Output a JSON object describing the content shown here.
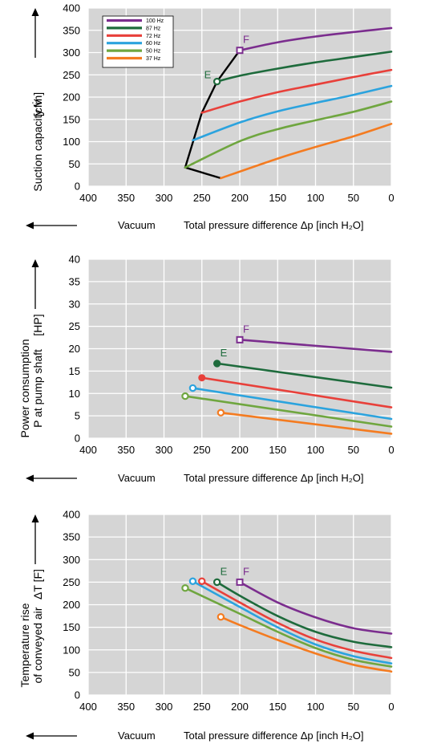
{
  "chart_data": [
    {
      "type": "line",
      "ylabel": "Suction capacity V̇",
      "yunit": "[cfm]",
      "xlabel_left": "Vacuum",
      "xlabel_right": "Total pressure difference Δp [inch H₂O]",
      "xlim": [
        400,
        0
      ],
      "ylim": [
        0,
        400
      ],
      "xticks": [
        400,
        350,
        300,
        250,
        200,
        150,
        100,
        50,
        0
      ],
      "yticks": [
        0,
        50,
        100,
        150,
        200,
        250,
        300,
        350,
        400
      ],
      "grid": true,
      "legend_position": "top-left",
      "series": [
        {
          "name": "100 Hz",
          "color": "#7b2d8e",
          "x": [
            200,
            150,
            100,
            50,
            0
          ],
          "y": [
            305,
            323,
            336,
            346,
            355
          ]
        },
        {
          "name": "87 Hz",
          "color": "#1e6b3c",
          "x": [
            230,
            200,
            150,
            100,
            50,
            0
          ],
          "y": [
            235,
            248,
            264,
            278,
            290,
            302
          ]
        },
        {
          "name": "72 Hz",
          "color": "#e8403a",
          "x": [
            250,
            200,
            150,
            100,
            50,
            0
          ],
          "y": [
            165,
            190,
            211,
            228,
            245,
            261
          ]
        },
        {
          "name": "60 Hz",
          "color": "#2ba3de",
          "x": [
            262,
            200,
            150,
            100,
            50,
            0
          ],
          "y": [
            103,
            143,
            168,
            187,
            205,
            225
          ]
        },
        {
          "name": "50 Hz",
          "color": "#6fa63f",
          "x": [
            272,
            200,
            150,
            100,
            50,
            0
          ],
          "y": [
            42,
            101,
            128,
            148,
            167,
            190
          ]
        },
        {
          "name": "37 Hz",
          "color": "#f47b20",
          "x": [
            225,
            150,
            100,
            50,
            0
          ],
          "y": [
            18,
            62,
            88,
            112,
            140
          ]
        }
      ],
      "boundary": {
        "color": "#000000",
        "x": [
          200,
          230,
          250,
          272,
          225
        ],
        "y": [
          305,
          235,
          165,
          42,
          18
        ]
      },
      "points": [
        {
          "label": "F",
          "x": 200,
          "y": 305,
          "color": "#7b2d8e",
          "marker": "square"
        },
        {
          "label": "E",
          "x": 230,
          "y": 235,
          "color": "#1e6b3c",
          "marker": "circle"
        }
      ]
    },
    {
      "type": "line",
      "ylabel_line1": "Power consumption",
      "ylabel_line2": "P at pump shaft",
      "yunit": "[HP]",
      "xlabel_left": "Vacuum",
      "xlabel_right": "Total pressure difference Δp [inch H₂O]",
      "xlim": [
        400,
        0
      ],
      "ylim": [
        0,
        40
      ],
      "xticks": [
        400,
        350,
        300,
        250,
        200,
        150,
        100,
        50,
        0
      ],
      "yticks": [
        0,
        5,
        10,
        15,
        20,
        25,
        30,
        35,
        40
      ],
      "grid": true,
      "series": [
        {
          "name": "100 Hz",
          "color": "#7b2d8e",
          "x": [
            200,
            0
          ],
          "y": [
            22,
            19.3
          ]
        },
        {
          "name": "87 Hz",
          "color": "#1e6b3c",
          "x": [
            230,
            0
          ],
          "y": [
            16.7,
            11.3
          ]
        },
        {
          "name": "72 Hz",
          "color": "#e8403a",
          "x": [
            250,
            0
          ],
          "y": [
            13.5,
            6.9
          ]
        },
        {
          "name": "60 Hz",
          "color": "#2ba3de",
          "x": [
            262,
            0
          ],
          "y": [
            11.2,
            4.3
          ]
        },
        {
          "name": "50 Hz",
          "color": "#6fa63f",
          "x": [
            272,
            0
          ],
          "y": [
            9.4,
            2.6
          ]
        },
        {
          "name": "37 Hz",
          "color": "#f47b20",
          "x": [
            225,
            0
          ],
          "y": [
            5.7,
            1.0
          ]
        }
      ],
      "points": [
        {
          "label": "F",
          "x": 200,
          "y": 22,
          "color": "#7b2d8e",
          "marker": "square"
        },
        {
          "label": "E",
          "x": 230,
          "y": 16.7,
          "color": "#1e6b3c",
          "marker": "circle"
        }
      ]
    },
    {
      "type": "line",
      "ylabel_line1": "Temperature rise",
      "ylabel_line2": "of conveyed air",
      "yunit": "ΔT [F]",
      "xlabel_left": "Vacuum",
      "xlabel_right": "Total pressure difference Δp [inch H₂O]",
      "xlim": [
        400,
        0
      ],
      "ylim": [
        0,
        400
      ],
      "xticks": [
        400,
        350,
        300,
        250,
        200,
        150,
        100,
        50,
        0
      ],
      "yticks": [
        0,
        50,
        100,
        150,
        200,
        250,
        300,
        350,
        400
      ],
      "grid": true,
      "series": [
        {
          "name": "100 Hz",
          "color": "#7b2d8e",
          "x": [
            200,
            150,
            100,
            50,
            0
          ],
          "y": [
            250,
            205,
            172,
            148,
            136
          ]
        },
        {
          "name": "87 Hz",
          "color": "#1e6b3c",
          "x": [
            230,
            200,
            150,
            100,
            50,
            0
          ],
          "y": [
            250,
            220,
            175,
            140,
            118,
            106
          ]
        },
        {
          "name": "72 Hz",
          "color": "#e8403a",
          "x": [
            250,
            200,
            150,
            100,
            50,
            0
          ],
          "y": [
            252,
            205,
            160,
            123,
            98,
            82
          ]
        },
        {
          "name": "60 Hz",
          "color": "#2ba3de",
          "x": [
            262,
            200,
            150,
            100,
            50,
            0
          ],
          "y": [
            252,
            195,
            150,
            112,
            86,
            70
          ]
        },
        {
          "name": "50 Hz",
          "color": "#6fa63f",
          "x": [
            272,
            200,
            150,
            100,
            50,
            0
          ],
          "y": [
            237,
            180,
            140,
            104,
            78,
            63
          ]
        },
        {
          "name": "37 Hz",
          "color": "#f47b20",
          "x": [
            225,
            200,
            150,
            100,
            50,
            0
          ],
          "y": [
            173,
            155,
            122,
            92,
            67,
            52
          ]
        }
      ],
      "points": [
        {
          "label": "F",
          "x": 200,
          "y": 250,
          "color": "#7b2d8e",
          "marker": "square"
        },
        {
          "label": "E",
          "x": 230,
          "y": 250,
          "color": "#1e6b3c",
          "marker": "circle"
        }
      ]
    }
  ]
}
